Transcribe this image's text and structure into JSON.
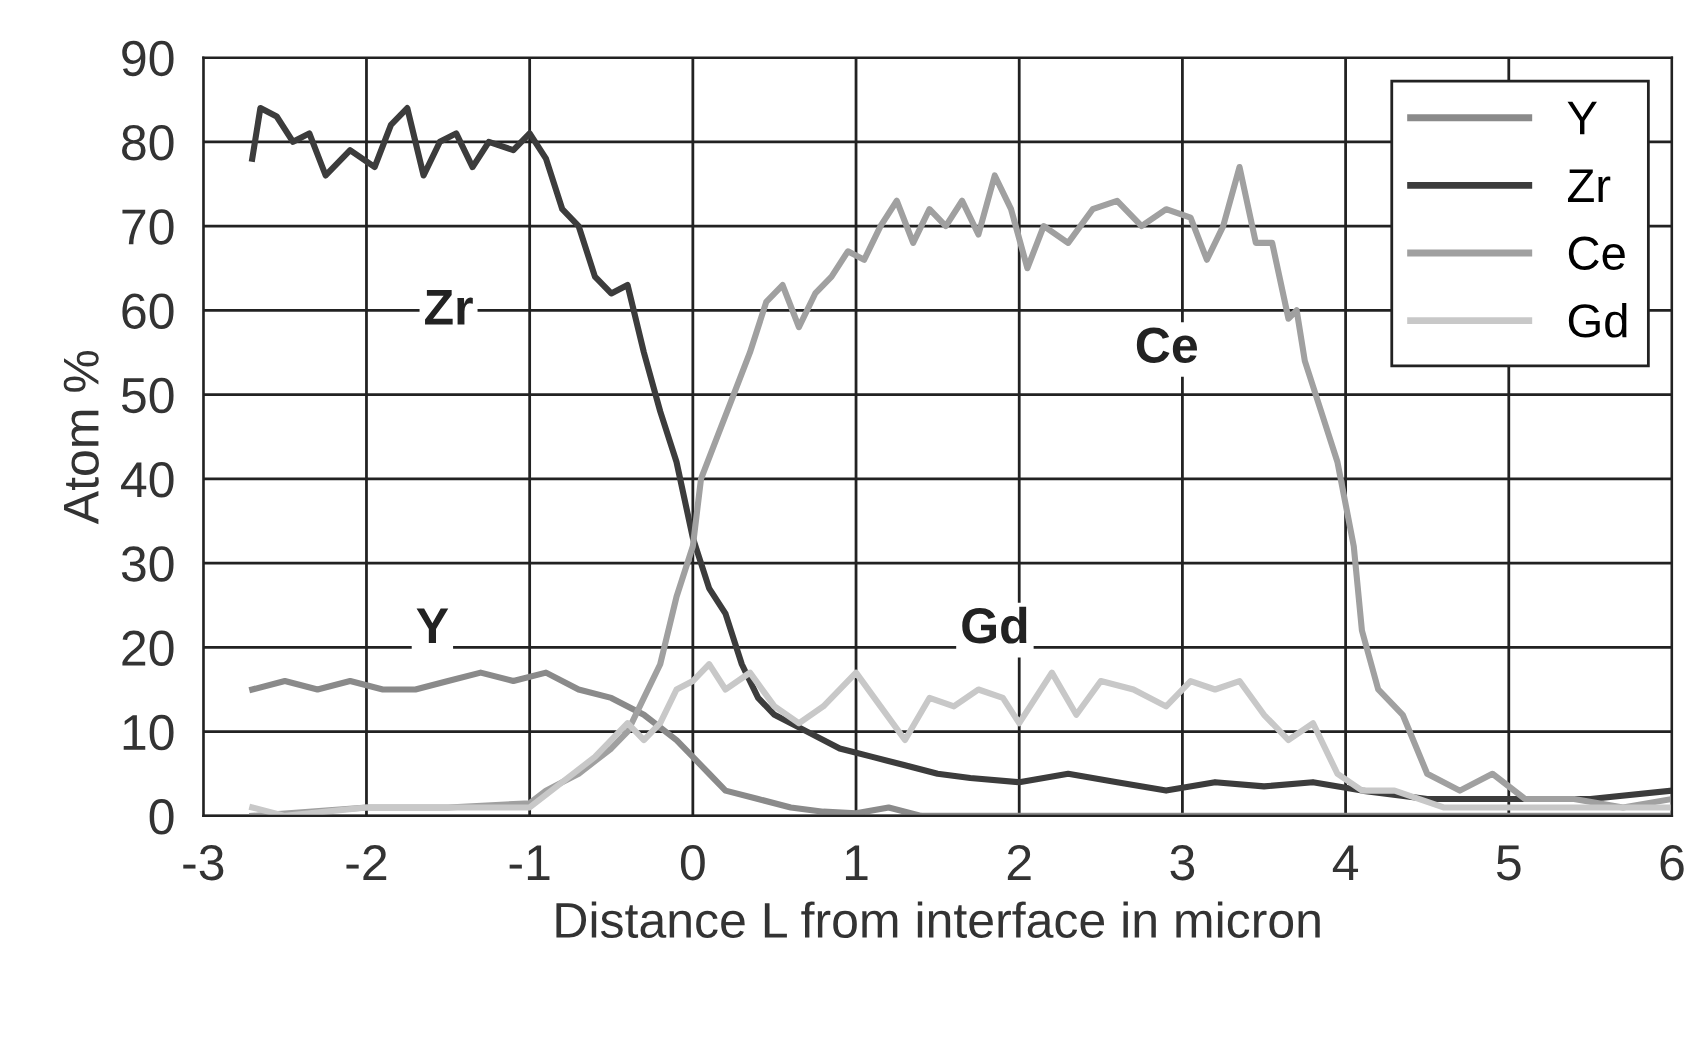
{
  "chart_data": {
    "type": "line",
    "xlabel": "Distance L from interface in micron",
    "ylabel": "Atom %",
    "xlim": [
      -3,
      6
    ],
    "xticks": [
      -3,
      -2,
      -1,
      0,
      1,
      2,
      3,
      4,
      5,
      6
    ],
    "ylim": [
      0,
      90
    ],
    "yticks": [
      0,
      10,
      20,
      30,
      40,
      50,
      60,
      70,
      80,
      90
    ],
    "grid": true,
    "legend": "top right",
    "marker": "none",
    "line_style": "solid",
    "series": [
      {
        "name": "Y",
        "color": "#8a8a8a",
        "x": [
          -2.7,
          -2.5,
          -2.3,
          -2.1,
          -1.9,
          -1.7,
          -1.5,
          -1.3,
          -1.1,
          -0.9,
          -0.7,
          -0.5,
          -0.3,
          -0.1,
          0,
          0.1,
          0.2,
          0.4,
          0.6,
          0.8,
          1.0,
          1.2,
          1.4,
          2.0,
          3.0,
          4.0,
          5.0,
          6.0
        ],
        "values": [
          15,
          16,
          15,
          16,
          15,
          15,
          16,
          17,
          16,
          17,
          15,
          14,
          12,
          9,
          7,
          5,
          3,
          2,
          1,
          0.5,
          0.3,
          1,
          0,
          0,
          0,
          0,
          0,
          0
        ]
      },
      {
        "name": "Zr",
        "color": "#3c3c3c",
        "x": [
          -2.7,
          -2.65,
          -2.55,
          -2.45,
          -2.35,
          -2.25,
          -2.1,
          -1.95,
          -1.85,
          -1.75,
          -1.65,
          -1.55,
          -1.45,
          -1.35,
          -1.25,
          -1.1,
          -1.0,
          -0.9,
          -0.8,
          -0.7,
          -0.6,
          -0.5,
          -0.4,
          -0.3,
          -0.2,
          -0.1,
          0,
          0.05,
          0.1,
          0.2,
          0.3,
          0.4,
          0.5,
          0.7,
          0.9,
          1.1,
          1.3,
          1.5,
          1.7,
          2.0,
          2.3,
          2.6,
          2.9,
          3.2,
          3.5,
          3.8,
          4.1,
          4.5,
          5.0,
          5.5,
          6.0
        ],
        "values": [
          78,
          84,
          83,
          80,
          81,
          76,
          79,
          77,
          82,
          84,
          76,
          80,
          81,
          77,
          80,
          79,
          81,
          78,
          72,
          70,
          64,
          62,
          63,
          55,
          48,
          42,
          33,
          30,
          27,
          24,
          18,
          14,
          12,
          10,
          8,
          7,
          6,
          5,
          4.5,
          4,
          5,
          4,
          3,
          4,
          3.5,
          4,
          3,
          2,
          2,
          2,
          3
        ]
      },
      {
        "name": "Ce",
        "color": "#a0a0a0",
        "x": [
          -2.7,
          -2,
          -1.5,
          -1,
          -0.9,
          -0.7,
          -0.5,
          -0.4,
          -0.3,
          -0.2,
          -0.1,
          0,
          0.05,
          0.15,
          0.25,
          0.35,
          0.45,
          0.55,
          0.65,
          0.75,
          0.85,
          0.95,
          1.05,
          1.15,
          1.25,
          1.35,
          1.45,
          1.55,
          1.65,
          1.75,
          1.85,
          1.95,
          2.05,
          2.15,
          2.3,
          2.45,
          2.6,
          2.75,
          2.9,
          3.05,
          3.15,
          3.25,
          3.35,
          3.45,
          3.55,
          3.65,
          3.7,
          3.75,
          3.85,
          3.95,
          4.05,
          4.1,
          4.2,
          4.35,
          4.5,
          4.7,
          4.9,
          5.1,
          5.4,
          5.7,
          6
        ],
        "values": [
          0,
          1,
          1,
          1.5,
          3,
          5,
          8,
          10,
          14,
          18,
          26,
          32,
          40,
          45,
          50,
          55,
          61,
          63,
          58,
          62,
          64,
          67,
          66,
          70,
          73,
          68,
          72,
          70,
          73,
          69,
          76,
          72,
          65,
          70,
          68,
          72,
          73,
          70,
          72,
          71,
          66,
          70,
          77,
          68,
          68,
          59,
          60,
          54,
          48,
          42,
          32,
          22,
          15,
          12,
          5,
          3,
          5,
          2,
          2,
          1,
          2
        ]
      },
      {
        "name": "Gd",
        "color": "#c8c8c8",
        "x": [
          -2.7,
          -2.5,
          -2,
          -1.5,
          -1,
          -0.8,
          -0.6,
          -0.4,
          -0.3,
          -0.2,
          -0.1,
          0,
          0.1,
          0.2,
          0.35,
          0.5,
          0.65,
          0.8,
          1.0,
          1.15,
          1.3,
          1.45,
          1.6,
          1.75,
          1.9,
          2.0,
          2.2,
          2.35,
          2.5,
          2.7,
          2.9,
          3.05,
          3.2,
          3.35,
          3.5,
          3.65,
          3.8,
          3.95,
          4.1,
          4.3,
          4.6,
          5,
          5.5,
          6
        ],
        "values": [
          1,
          0,
          1,
          1,
          1,
          4,
          7,
          11,
          9,
          11,
          15,
          16,
          18,
          15,
          17,
          13,
          11,
          13,
          17,
          13,
          9,
          14,
          13,
          15,
          14,
          11,
          17,
          12,
          16,
          15,
          13,
          16,
          15,
          16,
          12,
          9,
          11,
          5,
          3,
          3,
          1,
          1,
          1,
          1
        ]
      }
    ],
    "annotations": [
      "Zr",
      "Y",
      "Ce",
      "Gd"
    ]
  }
}
